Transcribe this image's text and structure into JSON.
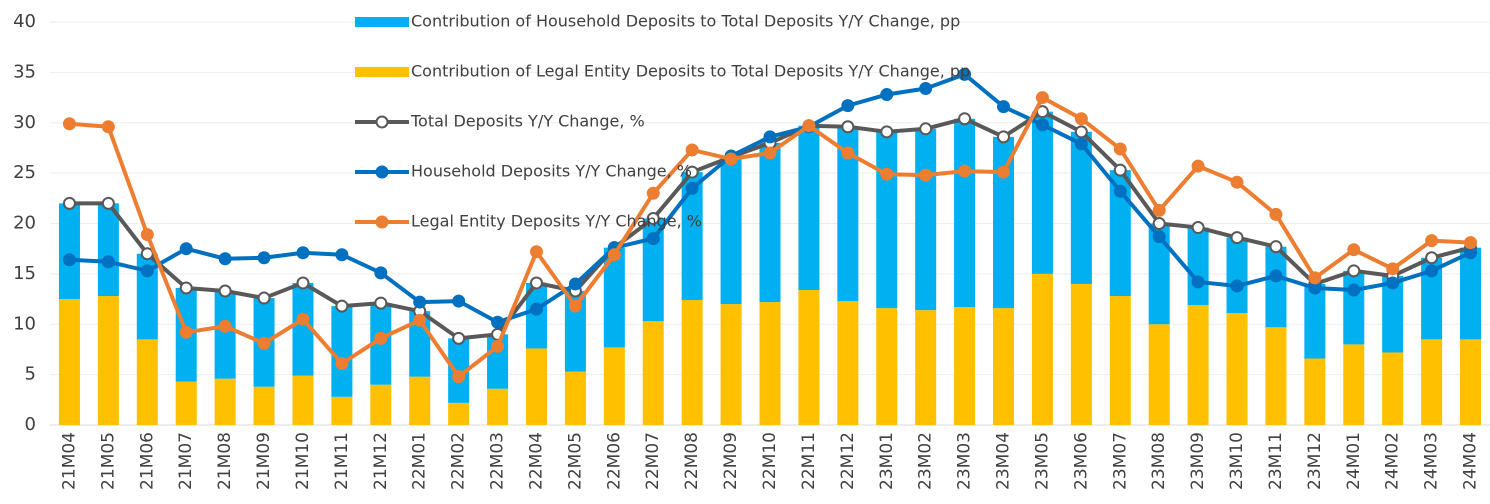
{
  "chart_data": {
    "type": "bar",
    "stacked": true,
    "categories": [
      "21M04",
      "21M05",
      "21M06",
      "21M07",
      "21M08",
      "21M09",
      "21M10",
      "21M11",
      "21M12",
      "22M01",
      "22M02",
      "22M03",
      "22M04",
      "22M05",
      "22M06",
      "22M07",
      "22M08",
      "22M09",
      "22M10",
      "22M11",
      "22M12",
      "23M01",
      "23M02",
      "23M03",
      "23M04",
      "23M05",
      "23M06",
      "23M07",
      "23M08",
      "23M09",
      "23M10",
      "23M11",
      "23M12",
      "24M01",
      "24M02",
      "24M03",
      "24M04"
    ],
    "series": [
      {
        "name": "Contribution of Household Deposits to Total Deposits Y/Y Change, pp",
        "type": "bar",
        "color": "#00b0f0",
        "values": [
          9.5,
          9.2,
          8.5,
          9.3,
          8.7,
          8.8,
          9.2,
          9.0,
          8.1,
          6.5,
          6.4,
          5.4,
          6.5,
          8.0,
          9.9,
          10.2,
          12.7,
          14.6,
          15.8,
          16.3,
          17.3,
          17.5,
          18.0,
          18.7,
          17.0,
          16.1,
          15.1,
          12.5,
          10.0,
          7.7,
          7.5,
          8.0,
          7.4,
          7.3,
          7.6,
          8.1,
          9.1
        ]
      },
      {
        "name": "Contribution of Legal Entity Deposits to Total Deposits Y/Y Change, pp",
        "type": "bar",
        "color": "#ffc000",
        "values": [
          12.5,
          12.8,
          8.5,
          4.3,
          4.6,
          3.8,
          4.9,
          2.8,
          4.0,
          4.8,
          2.2,
          3.6,
          7.6,
          5.3,
          7.7,
          10.3,
          12.4,
          12.0,
          12.2,
          13.4,
          12.3,
          11.6,
          11.4,
          11.7,
          11.6,
          15.0,
          14.0,
          12.8,
          10.0,
          11.9,
          11.1,
          9.7,
          6.6,
          8.0,
          7.2,
          8.5,
          8.5
        ]
      },
      {
        "name": "Total Deposits Y/Y Change, %",
        "type": "line",
        "color": "#595959",
        "marker_fill": "#ffffff",
        "values": [
          22.0,
          22.0,
          17.0,
          13.6,
          13.3,
          12.6,
          14.1,
          11.8,
          12.1,
          11.3,
          8.6,
          9.0,
          14.1,
          13.3,
          17.6,
          20.5,
          25.1,
          26.6,
          28.0,
          29.7,
          29.6,
          29.1,
          29.4,
          30.4,
          28.6,
          31.1,
          29.1,
          25.3,
          20.0,
          19.6,
          18.6,
          17.7,
          14.0,
          15.3,
          14.8,
          16.6,
          17.6
        ]
      },
      {
        "name": "Household Deposits Y/Y Change, %",
        "type": "line",
        "color": "#0070c0",
        "marker_fill": "#0070c0",
        "values": [
          16.4,
          16.2,
          15.3,
          17.5,
          16.5,
          16.6,
          17.1,
          16.9,
          15.1,
          12.2,
          12.3,
          10.2,
          11.5,
          14.0,
          17.6,
          18.5,
          23.5,
          26.7,
          28.6,
          29.6,
          31.7,
          32.8,
          33.4,
          34.8,
          31.6,
          29.8,
          27.9,
          23.2,
          18.7,
          14.2,
          13.8,
          14.8,
          13.6,
          13.4,
          14.1,
          15.3,
          17.1
        ]
      },
      {
        "name": "Legal Entity Deposits Y/Y Change, %",
        "type": "line",
        "color": "#ed7d31",
        "marker_fill": "#ed7d31",
        "values": [
          29.9,
          29.6,
          18.9,
          9.2,
          9.8,
          8.1,
          10.5,
          6.1,
          8.6,
          10.4,
          4.8,
          7.8,
          17.2,
          11.8,
          16.9,
          23.0,
          27.3,
          26.4,
          27.0,
          29.7,
          27.0,
          24.9,
          24.8,
          25.2,
          25.1,
          32.5,
          30.4,
          27.4,
          21.3,
          25.7,
          24.1,
          20.9,
          14.6,
          17.4,
          15.5,
          18.3,
          18.1
        ]
      }
    ],
    "stack_order": [
      1,
      0
    ],
    "ylim": [
      0,
      40
    ],
    "yticks": [
      0,
      5,
      10,
      15,
      20,
      25,
      30,
      35,
      40
    ],
    "grid": true,
    "legend": "top"
  }
}
